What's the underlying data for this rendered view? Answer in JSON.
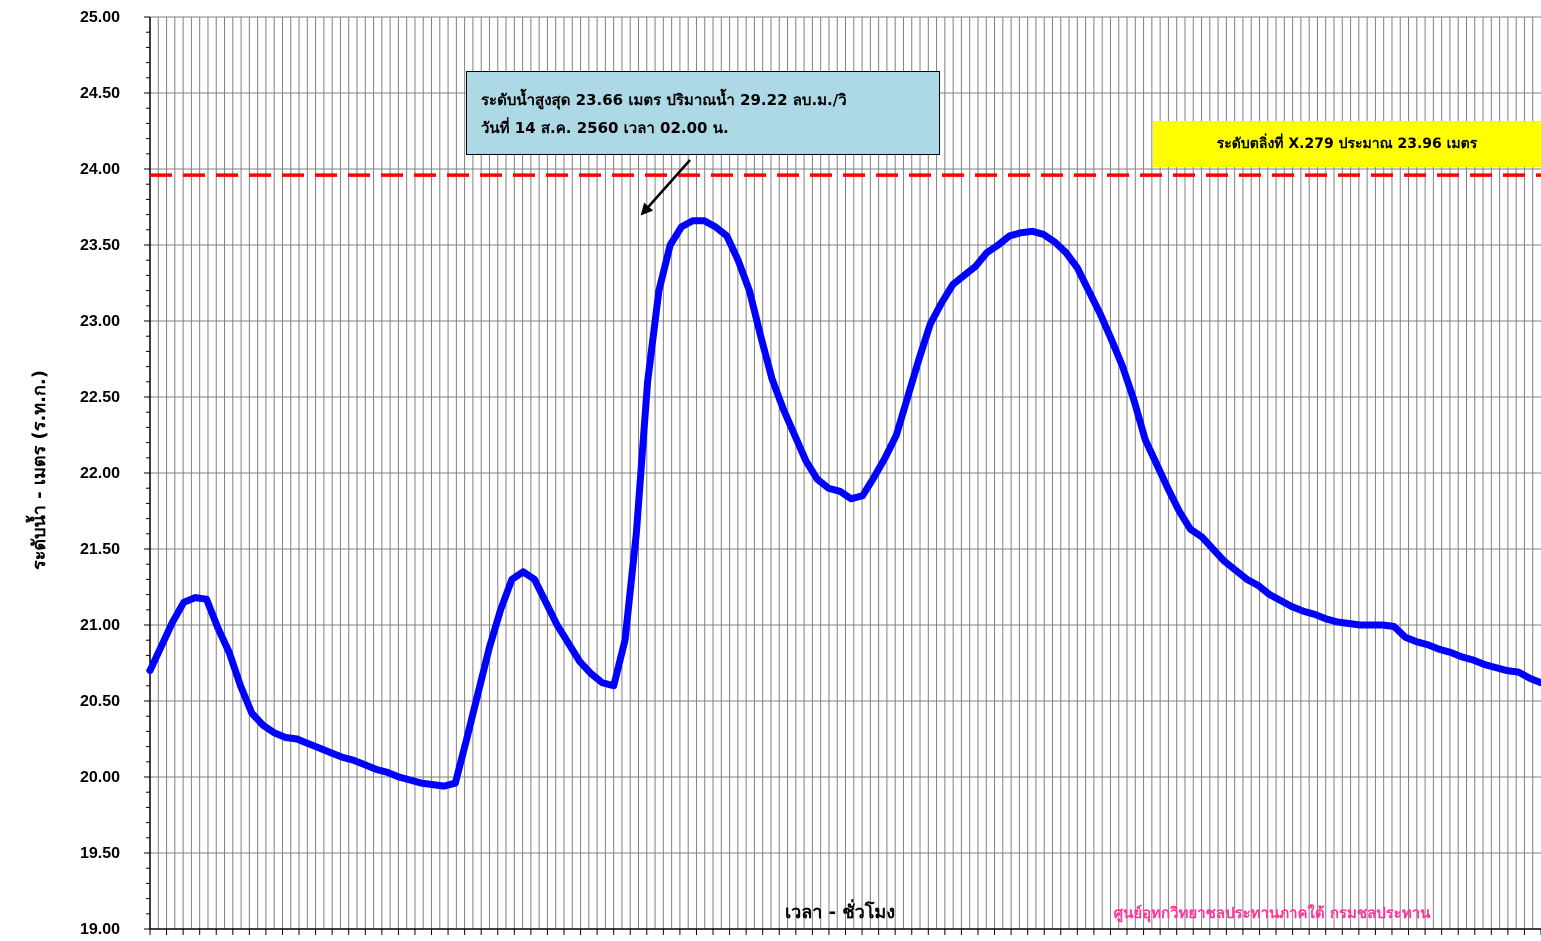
{
  "chart_data": {
    "type": "line",
    "title": "",
    "xlabel": "เวลา - ชั่วโมง",
    "ylabel": "ระดับน้ำ - เมตร (ร.ท.ก.)",
    "ylim": [
      19.0,
      25.0
    ],
    "y_ticks": [
      "19.00",
      "19.50",
      "20.00",
      "20.50",
      "21.00",
      "21.50",
      "22.00",
      "22.50",
      "23.00",
      "23.50",
      "24.00",
      "24.50",
      "25.00"
    ],
    "grid": true,
    "line_color": "#0000ff",
    "threshold": {
      "value": 23.96,
      "color": "#ff0000",
      "style": "dashed",
      "label": "ระดับตลิ่งที่ X.279 ประมาณ 23.96 เมตร"
    },
    "annotation": {
      "line1": "ระดับน้ำสูงสุด 23.66 เมตร ปริมาณน้ำ 29.22 ลบ.ม./วิ",
      "line2": "วันที่ 14 ส.ค. 2560  เวลา  02.00 น.",
      "peak_value": 23.66
    },
    "credit": "ศูนย์อุทกวิทยาชลประทานภาคใต้ กรมชลประทาน",
    "series": [
      {
        "values": [
          20.7,
          20.86,
          21.02,
          21.15,
          21.18,
          21.17,
          20.98,
          20.82,
          20.6,
          20.42,
          20.34,
          20.29,
          20.26,
          20.25,
          20.22,
          20.19,
          20.16,
          20.13,
          20.11,
          20.08,
          20.05,
          20.03,
          20.0,
          19.98,
          19.96,
          19.95,
          19.94,
          19.96,
          20.25,
          20.55,
          20.85,
          21.1,
          21.3,
          21.35,
          21.3,
          21.15,
          21.0,
          20.88,
          20.76,
          20.68,
          20.62,
          20.6,
          20.9,
          21.6,
          22.6,
          23.2,
          23.5,
          23.62,
          23.66,
          23.66,
          23.62,
          23.56,
          23.4,
          23.2,
          22.9,
          22.62,
          22.42,
          22.25,
          22.08,
          21.96,
          21.9,
          21.88,
          21.83,
          21.85,
          21.97,
          22.1,
          22.25,
          22.5,
          22.75,
          22.98,
          23.12,
          23.24,
          23.3,
          23.36,
          23.45,
          23.5,
          23.56,
          23.58,
          23.59,
          23.57,
          23.52,
          23.45,
          23.35,
          23.2,
          23.05,
          22.88,
          22.7,
          22.48,
          22.22,
          22.06,
          21.9,
          21.75,
          21.63,
          21.58,
          21.5,
          21.42,
          21.36,
          21.3,
          21.26,
          21.2,
          21.16,
          21.12,
          21.09,
          21.07,
          21.04,
          21.02,
          21.01,
          21.0,
          21.0,
          21.0,
          20.99,
          20.92,
          20.89,
          20.87,
          20.84,
          20.82,
          20.79,
          20.77,
          20.74,
          20.72,
          20.7,
          20.69,
          20.65,
          20.62
        ]
      }
    ]
  }
}
